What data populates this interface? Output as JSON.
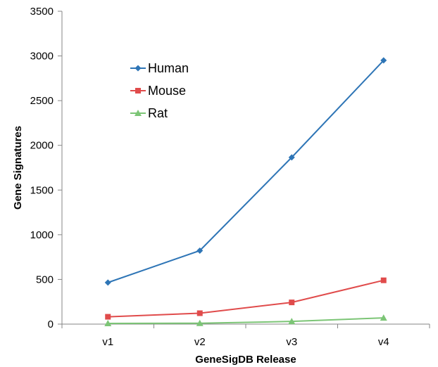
{
  "chart_data": {
    "type": "line",
    "categories": [
      "v1",
      "v2",
      "v3",
      "v4"
    ],
    "series": [
      {
        "name": "Human",
        "values": [
          465,
          822,
          1865,
          2950
        ],
        "color": "#2E75B6",
        "marker": "diamond"
      },
      {
        "name": "Mouse",
        "values": [
          82,
          122,
          243,
          490
        ],
        "color": "#E04B4B",
        "marker": "square"
      },
      {
        "name": "Rat",
        "values": [
          8,
          10,
          30,
          70
        ],
        "color": "#7CC576",
        "marker": "triangle"
      }
    ],
    "xlabel": "GeneSigDB Release",
    "ylabel": "Gene Signatures",
    "ylim": [
      0,
      3500
    ],
    "yticks": [
      0,
      500,
      1000,
      1500,
      2000,
      2500,
      3000,
      3500
    ],
    "legend_position": "top-left inside",
    "grid": false
  }
}
